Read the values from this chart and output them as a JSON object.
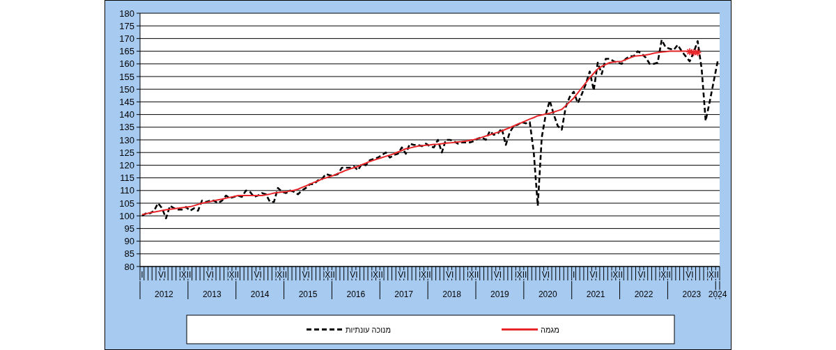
{
  "chart_data": {
    "type": "line",
    "legend": "bottom",
    "grid": "y",
    "ylim": [
      80,
      180
    ],
    "yticks": [
      80,
      85,
      90,
      95,
      100,
      105,
      110,
      115,
      120,
      125,
      130,
      135,
      140,
      145,
      150,
      155,
      160,
      165,
      170,
      175,
      180
    ],
    "categories": [
      "I",
      null,
      null,
      null,
      null,
      "VI",
      null,
      null,
      null,
      null,
      null,
      "XII",
      null,
      null,
      null,
      null,
      null,
      "VI",
      null,
      null,
      null,
      null,
      null,
      "XII",
      null,
      null,
      null,
      null,
      null,
      "VI",
      null,
      null,
      null,
      null,
      null,
      "XII",
      null,
      null,
      null,
      null,
      null,
      "VI",
      null,
      null,
      null,
      null,
      null,
      "XII",
      null,
      null,
      null,
      null,
      null,
      "VI",
      null,
      null,
      null,
      null,
      null,
      "XII",
      null,
      null,
      null,
      null,
      null,
      "VI",
      null,
      null,
      null,
      null,
      null,
      "XII",
      null,
      null,
      null,
      null,
      null,
      "VI",
      null,
      null,
      null,
      null,
      null,
      "XII",
      null,
      null,
      null,
      null,
      null,
      "VI",
      null,
      null,
      null,
      null,
      null,
      "XII",
      null,
      null,
      null,
      null,
      null,
      "VI",
      null,
      null,
      null,
      null,
      null,
      null,
      "I",
      null,
      null,
      null,
      null,
      "VI",
      null,
      null,
      null,
      null,
      null,
      "XII",
      null,
      null,
      null,
      null,
      null,
      "VI",
      null,
      null,
      null,
      null,
      null,
      "XII",
      null,
      null,
      null,
      null,
      null,
      "VI",
      null,
      null,
      null,
      null,
      null,
      "XII",
      null
    ],
    "annotations": [
      "2012",
      "2013",
      "2014",
      "2015",
      "2016",
      "2017",
      "2018",
      "2019",
      "2020",
      "2021",
      "2022",
      "2023",
      "2024"
    ],
    "series": [
      {
        "name": "מנוכה עונתיות",
        "color": "#000000",
        "line_style": "dashed",
        "values": [
          100,
          101,
          101,
          102,
          105,
          103,
          99,
          104,
          103,
          102.5,
          102.5,
          103.5,
          102,
          103,
          102,
          106,
          105.5,
          106,
          106,
          105,
          106,
          108,
          107,
          107.5,
          108,
          107.5,
          110,
          109.5,
          107.5,
          108,
          109,
          108.5,
          105.5,
          105.5,
          111,
          109.5,
          109,
          110,
          109.5,
          108.5,
          110,
          111,
          112.5,
          112.5,
          114,
          114.5,
          116.5,
          116,
          116,
          116.5,
          119,
          119,
          119,
          119.5,
          118,
          120.5,
          120,
          122,
          122.5,
          123,
          124,
          125,
          123,
          124,
          124.5,
          127,
          124.5,
          128.5,
          128,
          128,
          127.5,
          128.5,
          127.5,
          127,
          130,
          125,
          130,
          130,
          129.5,
          128.5,
          129,
          129,
          129,
          129.5,
          130.5,
          131,
          130,
          133.5,
          132,
          132.5,
          134.5,
          128,
          133,
          135.5,
          136,
          137,
          136.5,
          137,
          125,
          104,
          131,
          140,
          145.5,
          140,
          135.5,
          134,
          143,
          147,
          149,
          144.5,
          148,
          152,
          157,
          149.5,
          160.5,
          156,
          162,
          162,
          161,
          160.5,
          160,
          162,
          163,
          163,
          165,
          164,
          162.5,
          160,
          160,
          160.5,
          169.5,
          166.5,
          166,
          165.5,
          167.5,
          165,
          163,
          161,
          164.5,
          169,
          158,
          137.5,
          145,
          153,
          161
        ]
      },
      {
        "name": "מגמה",
        "color": "#e8262a",
        "values": [
          100.5,
          100.8,
          101.2,
          101.5,
          101.8,
          102.1,
          102.4,
          102.6,
          102.8,
          103,
          103.2,
          103.4,
          103.6,
          104,
          104.5,
          105,
          105.3,
          105.6,
          106,
          106.3,
          106.6,
          107,
          107.3,
          107.6,
          108,
          108,
          108,
          108,
          108,
          108,
          108,
          108.3,
          108.6,
          109,
          109.2,
          109.4,
          109.5,
          109.8,
          110.1,
          110.5,
          111.2,
          111.8,
          112.5,
          113.2,
          113.8,
          114.5,
          115,
          115.5,
          116,
          116.7,
          117.3,
          118,
          118.5,
          119,
          119.5,
          120.2,
          120.8,
          121.5,
          122,
          122.5,
          123,
          123.5,
          124,
          124.5,
          125.2,
          125.8,
          126.5,
          126.8,
          127.2,
          127.5,
          127.7,
          127.9,
          128,
          128.2,
          128.3,
          128.5,
          128.7,
          128.8,
          129,
          129.2,
          129.3,
          129.5,
          129.8,
          130.1,
          130.5,
          131,
          131.5,
          132,
          132.5,
          133,
          133.5,
          134.2,
          134.8,
          135.5,
          136.2,
          136.8,
          137.5,
          138.2,
          138.8,
          139.5,
          139.8,
          140.2,
          140.5,
          141,
          141.5,
          142,
          143.5,
          145,
          146.5,
          148.5,
          150.5,
          152.5,
          154.5,
          156.3,
          158,
          159,
          159.8,
          160.5,
          160.7,
          160.9,
          161,
          161.7,
          162.3,
          163,
          163.2,
          163.3,
          163.5,
          163.8,
          164.2,
          164.5,
          164.7,
          164.8,
          165,
          165,
          165,
          165,
          165,
          164.8,
          164.5,
          164.5,
          null,
          null,
          null,
          null,
          null
        ]
      },
      {
        "type": "scatter",
        "color": "#e8262a",
        "marker": "cross",
        "values": [
          null,
          null,
          null,
          null,
          null,
          null,
          null,
          null,
          null,
          null,
          null,
          null,
          null,
          null,
          null,
          null,
          null,
          null,
          null,
          null,
          null,
          null,
          null,
          null,
          null,
          null,
          null,
          null,
          null,
          null,
          null,
          null,
          null,
          null,
          null,
          null,
          null,
          null,
          null,
          null,
          null,
          null,
          null,
          null,
          null,
          null,
          null,
          null,
          null,
          null,
          null,
          null,
          null,
          null,
          null,
          null,
          null,
          null,
          null,
          null,
          null,
          null,
          null,
          null,
          null,
          null,
          null,
          null,
          null,
          null,
          null,
          null,
          null,
          null,
          null,
          null,
          null,
          null,
          null,
          null,
          null,
          null,
          null,
          null,
          null,
          null,
          null,
          null,
          null,
          null,
          null,
          null,
          null,
          null,
          null,
          null,
          null,
          null,
          null,
          null,
          null,
          null,
          null,
          null,
          null,
          null,
          null,
          null,
          null,
          null,
          null,
          null,
          null,
          null,
          null,
          null,
          null,
          null,
          null,
          null,
          null,
          null,
          null,
          null,
          null,
          null,
          null,
          null,
          null,
          null,
          null,
          null,
          null,
          null,
          null,
          null,
          null,
          164.8,
          164.5,
          164.5,
          null,
          null,
          null,
          null,
          null
        ]
      }
    ]
  }
}
